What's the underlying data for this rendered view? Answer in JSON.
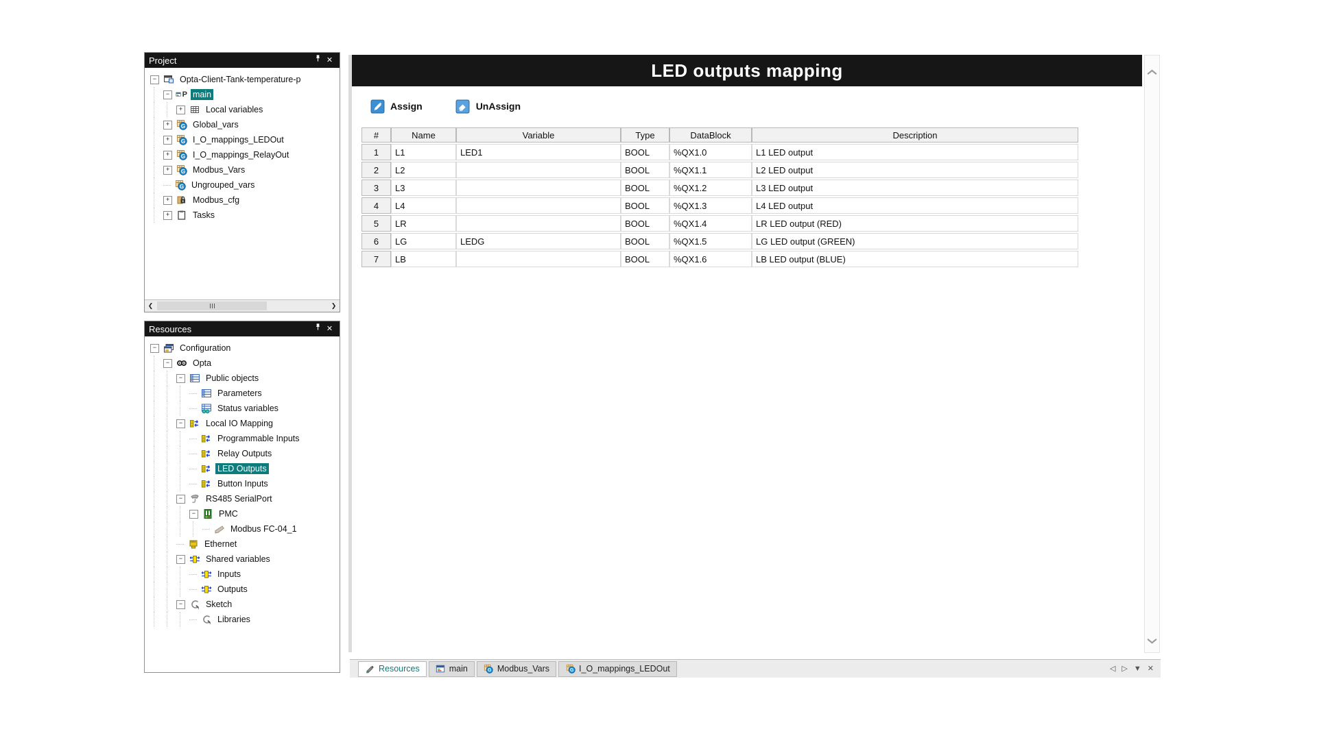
{
  "colors": {
    "accent": "#0e7c7c",
    "panel_header_bg": "#161616",
    "title_bg": "#161616"
  },
  "project_panel": {
    "title": "Project",
    "tree": [
      {
        "label": "Opta-Client-Tank-temperature-p",
        "level": 0,
        "expand": "minus",
        "icon": "project-icon"
      },
      {
        "label": "main",
        "level": 1,
        "expand": "minus",
        "icon": "program-icon",
        "selected": true
      },
      {
        "label": "Local variables",
        "level": 2,
        "expand": "plus",
        "icon": "local-variables-icon"
      },
      {
        "label": "Global_vars",
        "level": 1,
        "expand": "plus",
        "icon": "global-vars-icon"
      },
      {
        "label": "I_O_mappings_LEDOut",
        "level": 1,
        "expand": "plus",
        "icon": "global-vars-icon"
      },
      {
        "label": "I_O_mappings_RelayOut",
        "level": 1,
        "expand": "plus",
        "icon": "global-vars-icon"
      },
      {
        "label": "Modbus_Vars",
        "level": 1,
        "expand": "plus",
        "icon": "global-vars-icon"
      },
      {
        "label": "Ungrouped_vars",
        "level": 1,
        "expand": "none",
        "icon": "global-vars-icon"
      },
      {
        "label": "Modbus_cfg",
        "level": 1,
        "expand": "plus",
        "icon": "modbus-cfg-icon"
      },
      {
        "label": "Tasks",
        "level": 1,
        "expand": "plus",
        "icon": "tasks-icon"
      }
    ]
  },
  "resources_panel": {
    "title": "Resources",
    "tree": [
      {
        "label": "Configuration",
        "level": 0,
        "expand": "minus",
        "icon": "configuration-icon"
      },
      {
        "label": "Opta",
        "level": 1,
        "expand": "minus",
        "icon": "opta-icon"
      },
      {
        "label": "Public objects",
        "level": 2,
        "expand": "minus",
        "icon": "public-objects-icon"
      },
      {
        "label": "Parameters",
        "level": 3,
        "expand": "none",
        "icon": "parameters-icon"
      },
      {
        "label": "Status variables",
        "level": 3,
        "expand": "none",
        "icon": "status-variables-icon"
      },
      {
        "label": "Local IO Mapping",
        "level": 2,
        "expand": "minus",
        "icon": "io-mapping-icon"
      },
      {
        "label": "Programmable Inputs",
        "level": 3,
        "expand": "none",
        "icon": "io-mapping-icon"
      },
      {
        "label": "Relay Outputs",
        "level": 3,
        "expand": "none",
        "icon": "io-mapping-icon"
      },
      {
        "label": "LED Outputs",
        "level": 3,
        "expand": "none",
        "icon": "io-mapping-icon",
        "selected": true
      },
      {
        "label": "Button Inputs",
        "level": 3,
        "expand": "none",
        "icon": "io-mapping-icon"
      },
      {
        "label": "RS485 SerialPort",
        "level": 2,
        "expand": "minus",
        "icon": "serial-port-icon"
      },
      {
        "label": "PMC",
        "level": 3,
        "expand": "minus",
        "icon": "pmc-icon"
      },
      {
        "label": "Modbus FC-04_1",
        "level": 4,
        "expand": "none",
        "icon": "modbus-fc-icon"
      },
      {
        "label": "Ethernet",
        "level": 2,
        "expand": "none",
        "icon": "ethernet-icon"
      },
      {
        "label": "Shared variables",
        "level": 2,
        "expand": "minus",
        "icon": "shared-vars-icon"
      },
      {
        "label": "Inputs",
        "level": 3,
        "expand": "none",
        "icon": "shared-vars-icon"
      },
      {
        "label": "Outputs",
        "level": 3,
        "expand": "none",
        "icon": "shared-vars-icon"
      },
      {
        "label": "Sketch",
        "level": 2,
        "expand": "minus",
        "icon": "sketch-icon"
      },
      {
        "label": "Libraries",
        "level": 3,
        "expand": "none",
        "icon": "sketch-icon"
      }
    ]
  },
  "editor": {
    "title": "LED outputs mapping",
    "toolbar": {
      "assign_label": "Assign",
      "unassign_label": "UnAssign"
    },
    "table": {
      "columns": [
        "#",
        "Name",
        "Variable",
        "Type",
        "DataBlock",
        "Description"
      ],
      "rows": [
        [
          "1",
          "L1",
          "LED1",
          "BOOL",
          "%QX1.0",
          "L1 LED output"
        ],
        [
          "2",
          "L2",
          "",
          "BOOL",
          "%QX1.1",
          "L2 LED output"
        ],
        [
          "3",
          "L3",
          "",
          "BOOL",
          "%QX1.2",
          "L3 LED output"
        ],
        [
          "4",
          "L4",
          "",
          "BOOL",
          "%QX1.3",
          "L4 LED output"
        ],
        [
          "5",
          "LR",
          "",
          "BOOL",
          "%QX1.4",
          "LR LED output (RED)"
        ],
        [
          "6",
          "LG",
          "LEDG",
          "BOOL",
          "%QX1.5",
          "LG LED output (GREEN)"
        ],
        [
          "7",
          "LB",
          "",
          "BOOL",
          "%QX1.6",
          "LB LED output (BLUE)"
        ]
      ]
    }
  },
  "tabbar": {
    "tabs": [
      {
        "label": "Resources",
        "icon": "resources-tab-icon",
        "active": true
      },
      {
        "label": "main",
        "icon": "main-tab-icon",
        "active": false
      },
      {
        "label": "Modbus_Vars",
        "icon": "vars-tab-icon",
        "active": false
      },
      {
        "label": "I_O_mappings_LEDOut",
        "icon": "vars-tab-icon",
        "active": false
      }
    ],
    "controls": [
      {
        "name": "tab-scroll-left-icon",
        "glyph": "◁"
      },
      {
        "name": "tab-scroll-right-icon",
        "glyph": "▷"
      },
      {
        "name": "tab-menu-icon",
        "glyph": "▼"
      },
      {
        "name": "tab-close-icon",
        "glyph": "✕"
      }
    ]
  }
}
